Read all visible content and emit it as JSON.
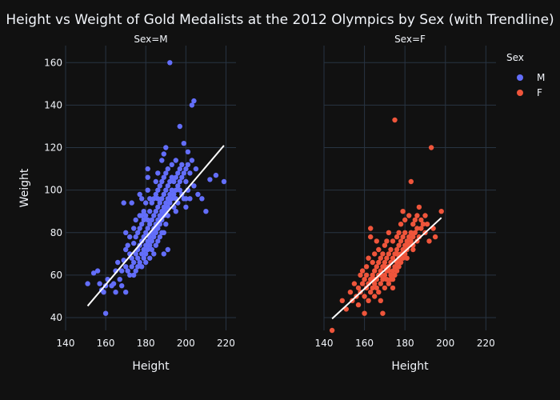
{
  "chart_data": {
    "type": "scatter",
    "title": "Height vs Weight of Gold Medalists at the 2012 Olympics by Sex (with Trendline)",
    "xlabel": "Height",
    "ylabel": "Weight",
    "xlim": [
      140,
      225
    ],
    "ylim": [
      34,
      168
    ],
    "xticks": [
      140,
      160,
      180,
      200,
      220
    ],
    "yticks": [
      40,
      60,
      80,
      100,
      120,
      140,
      160
    ],
    "grid": true,
    "legend": {
      "title": "Sex",
      "placement": "top-right"
    },
    "panels": [
      {
        "title": "Sex=M",
        "series_name": "M",
        "color": "#636efa",
        "trendline": {
          "x": [
            151,
            219
          ],
          "y": [
            45.5,
            121
          ]
        },
        "points": [
          [
            151,
            56
          ],
          [
            154,
            61
          ],
          [
            156,
            62
          ],
          [
            157,
            56
          ],
          [
            158,
            53
          ],
          [
            159,
            52
          ],
          [
            160,
            55
          ],
          [
            160,
            42
          ],
          [
            161,
            58
          ],
          [
            163,
            55
          ],
          [
            164,
            56
          ],
          [
            165,
            62
          ],
          [
            165,
            52
          ],
          [
            166,
            66
          ],
          [
            167,
            58
          ],
          [
            168,
            55
          ],
          [
            168,
            62
          ],
          [
            169,
            67
          ],
          [
            169,
            94
          ],
          [
            170,
            72
          ],
          [
            170,
            64
          ],
          [
            170,
            52
          ],
          [
            171,
            62
          ],
          [
            171,
            74
          ],
          [
            172,
            70
          ],
          [
            172,
            60
          ],
          [
            172,
            78
          ],
          [
            173,
            64
          ],
          [
            173,
            68
          ],
          [
            173,
            94
          ],
          [
            174,
            75
          ],
          [
            174,
            66
          ],
          [
            174,
            82
          ],
          [
            174,
            60
          ],
          [
            175,
            70
          ],
          [
            175,
            78
          ],
          [
            175,
            62
          ],
          [
            175,
            86
          ],
          [
            176,
            72
          ],
          [
            176,
            68
          ],
          [
            176,
            80
          ],
          [
            176,
            64
          ],
          [
            177,
            74
          ],
          [
            177,
            82
          ],
          [
            177,
            66
          ],
          [
            177,
            88
          ],
          [
            177,
            98
          ],
          [
            178,
            70
          ],
          [
            178,
            76
          ],
          [
            178,
            84
          ],
          [
            178,
            64
          ],
          [
            178,
            96
          ],
          [
            179,
            72
          ],
          [
            179,
            78
          ],
          [
            179,
            86
          ],
          [
            179,
            68
          ],
          [
            179,
            90
          ],
          [
            180,
            74
          ],
          [
            180,
            80
          ],
          [
            180,
            70
          ],
          [
            180,
            88
          ],
          [
            180,
            66
          ],
          [
            180,
            94
          ],
          [
            181,
            76
          ],
          [
            181,
            82
          ],
          [
            181,
            72
          ],
          [
            181,
            86
          ],
          [
            181,
            100
          ],
          [
            181,
            106
          ],
          [
            181,
            110
          ],
          [
            182,
            78
          ],
          [
            182,
            84
          ],
          [
            182,
            74
          ],
          [
            182,
            90
          ],
          [
            182,
            68
          ],
          [
            183,
            80
          ],
          [
            183,
            86
          ],
          [
            183,
            76
          ],
          [
            183,
            94
          ],
          [
            183,
            72
          ],
          [
            184,
            82
          ],
          [
            184,
            88
          ],
          [
            184,
            78
          ],
          [
            184,
            96
          ],
          [
            184,
            70
          ],
          [
            185,
            84
          ],
          [
            185,
            90
          ],
          [
            185,
            80
          ],
          [
            185,
            98
          ],
          [
            185,
            74
          ],
          [
            185,
            104
          ],
          [
            186,
            86
          ],
          [
            186,
            92
          ],
          [
            186,
            82
          ],
          [
            186,
            100
          ],
          [
            186,
            76
          ],
          [
            186,
            108
          ],
          [
            187,
            88
          ],
          [
            187,
            94
          ],
          [
            187,
            84
          ],
          [
            187,
            102
          ],
          [
            187,
            78
          ],
          [
            188,
            90
          ],
          [
            188,
            96
          ],
          [
            188,
            86
          ],
          [
            188,
            104
          ],
          [
            188,
            80
          ],
          [
            188,
            114
          ],
          [
            189,
            92
          ],
          [
            189,
            98
          ],
          [
            189,
            88
          ],
          [
            189,
            106
          ],
          [
            189,
            117
          ],
          [
            189,
            70
          ],
          [
            190,
            94
          ],
          [
            190,
            100
          ],
          [
            190,
            90
          ],
          [
            190,
            108
          ],
          [
            190,
            84
          ],
          [
            190,
            120
          ],
          [
            191,
            96
          ],
          [
            191,
            102
          ],
          [
            191,
            92
          ],
          [
            191,
            110
          ],
          [
            191,
            88
          ],
          [
            191,
            72
          ],
          [
            192,
            98
          ],
          [
            192,
            104
          ],
          [
            192,
            94
          ],
          [
            192,
            160
          ],
          [
            193,
            100
          ],
          [
            193,
            106
          ],
          [
            193,
            96
          ],
          [
            193,
            112
          ],
          [
            194,
            98
          ],
          [
            194,
            104
          ],
          [
            194,
            92
          ],
          [
            195,
            100
          ],
          [
            195,
            106
          ],
          [
            195,
            96
          ],
          [
            195,
            114
          ],
          [
            196,
            102
          ],
          [
            196,
            108
          ],
          [
            196,
            94
          ],
          [
            197,
            104
          ],
          [
            197,
            110
          ],
          [
            197,
            100
          ],
          [
            197,
            130
          ],
          [
            198,
            106
          ],
          [
            198,
            112
          ],
          [
            198,
            98
          ],
          [
            199,
            108
          ],
          [
            199,
            96
          ],
          [
            199,
            122
          ],
          [
            200,
            110
          ],
          [
            200,
            104
          ],
          [
            200,
            92
          ],
          [
            201,
            112
          ],
          [
            201,
            100
          ],
          [
            201,
            118
          ],
          [
            202,
            108
          ],
          [
            202,
            96
          ],
          [
            203,
            114
          ],
          [
            203,
            140
          ],
          [
            204,
            142
          ],
          [
            204,
            102
          ],
          [
            205,
            110
          ],
          [
            206,
            98
          ],
          [
            208,
            96
          ],
          [
            210,
            90
          ],
          [
            212,
            105
          ],
          [
            215,
            107
          ],
          [
            219,
            104
          ],
          [
            170,
            80
          ],
          [
            178,
            88
          ],
          [
            182,
            96
          ],
          [
            186,
            96
          ],
          [
            189,
            80
          ],
          [
            195,
            90
          ],
          [
            200,
            96
          ]
        ]
      },
      {
        "title": "Sex=F",
        "series_name": "F",
        "color": "#ef553b",
        "trendline": {
          "x": [
            144,
            198
          ],
          "y": [
            39.5,
            87
          ]
        },
        "points": [
          [
            144,
            34
          ],
          [
            149,
            48
          ],
          [
            151,
            44
          ],
          [
            153,
            52
          ],
          [
            154,
            48
          ],
          [
            155,
            56
          ],
          [
            156,
            50
          ],
          [
            157,
            54
          ],
          [
            157,
            46
          ],
          [
            158,
            60
          ],
          [
            158,
            52
          ],
          [
            159,
            56
          ],
          [
            159,
            62
          ],
          [
            160,
            50
          ],
          [
            160,
            58
          ],
          [
            160,
            42
          ],
          [
            161,
            54
          ],
          [
            161,
            64
          ],
          [
            161,
            60
          ],
          [
            162,
            56
          ],
          [
            162,
            48
          ],
          [
            162,
            68
          ],
          [
            163,
            58
          ],
          [
            163,
            52
          ],
          [
            163,
            78
          ],
          [
            163,
            82
          ],
          [
            164,
            60
          ],
          [
            164,
            54
          ],
          [
            164,
            66
          ],
          [
            165,
            62
          ],
          [
            165,
            56
          ],
          [
            165,
            70
          ],
          [
            165,
            50
          ],
          [
            166,
            58
          ],
          [
            166,
            64
          ],
          [
            166,
            76
          ],
          [
            166,
            54
          ],
          [
            167,
            60
          ],
          [
            167,
            66
          ],
          [
            167,
            52
          ],
          [
            167,
            72
          ],
          [
            168,
            62
          ],
          [
            168,
            56
          ],
          [
            168,
            68
          ],
          [
            168,
            48
          ],
          [
            169,
            64
          ],
          [
            169,
            58
          ],
          [
            169,
            70
          ],
          [
            169,
            42
          ],
          [
            170,
            60
          ],
          [
            170,
            66
          ],
          [
            170,
            54
          ],
          [
            170,
            74
          ],
          [
            171,
            62
          ],
          [
            171,
            68
          ],
          [
            171,
            58
          ],
          [
            171,
            76
          ],
          [
            172,
            64
          ],
          [
            172,
            70
          ],
          [
            172,
            56
          ],
          [
            172,
            80
          ],
          [
            173,
            60
          ],
          [
            173,
            66
          ],
          [
            173,
            72
          ],
          [
            173,
            58
          ],
          [
            174,
            62
          ],
          [
            174,
            68
          ],
          [
            174,
            76
          ],
          [
            174,
            54
          ],
          [
            175,
            64
          ],
          [
            175,
            70
          ],
          [
            175,
            60
          ],
          [
            175,
            133
          ],
          [
            176,
            66
          ],
          [
            176,
            72
          ],
          [
            176,
            62
          ],
          [
            176,
            78
          ],
          [
            177,
            68
          ],
          [
            177,
            74
          ],
          [
            177,
            64
          ],
          [
            177,
            80
          ],
          [
            178,
            70
          ],
          [
            178,
            76
          ],
          [
            178,
            66
          ],
          [
            178,
            84
          ],
          [
            179,
            72
          ],
          [
            179,
            78
          ],
          [
            179,
            68
          ],
          [
            179,
            90
          ],
          [
            180,
            74
          ],
          [
            180,
            70
          ],
          [
            180,
            86
          ],
          [
            181,
            76
          ],
          [
            181,
            72
          ],
          [
            181,
            68
          ],
          [
            182,
            78
          ],
          [
            182,
            74
          ],
          [
            182,
            88
          ],
          [
            183,
            80
          ],
          [
            183,
            76
          ],
          [
            183,
            104
          ],
          [
            184,
            78
          ],
          [
            184,
            84
          ],
          [
            184,
            72
          ],
          [
            185,
            80
          ],
          [
            185,
            86
          ],
          [
            186,
            82
          ],
          [
            186,
            88
          ],
          [
            187,
            78
          ],
          [
            187,
            92
          ],
          [
            188,
            82
          ],
          [
            188,
            86
          ],
          [
            189,
            84
          ],
          [
            190,
            80
          ],
          [
            190,
            88
          ],
          [
            191,
            84
          ],
          [
            192,
            76
          ],
          [
            193,
            120
          ],
          [
            194,
            82
          ],
          [
            195,
            78
          ],
          [
            198,
            90
          ],
          [
            170,
            64
          ],
          [
            172,
            62
          ],
          [
            174,
            58
          ],
          [
            176,
            70
          ],
          [
            168,
            60
          ],
          [
            165,
            58
          ],
          [
            180,
            80
          ],
          [
            184,
            74
          ],
          [
            186,
            76
          ]
        ]
      }
    ]
  }
}
